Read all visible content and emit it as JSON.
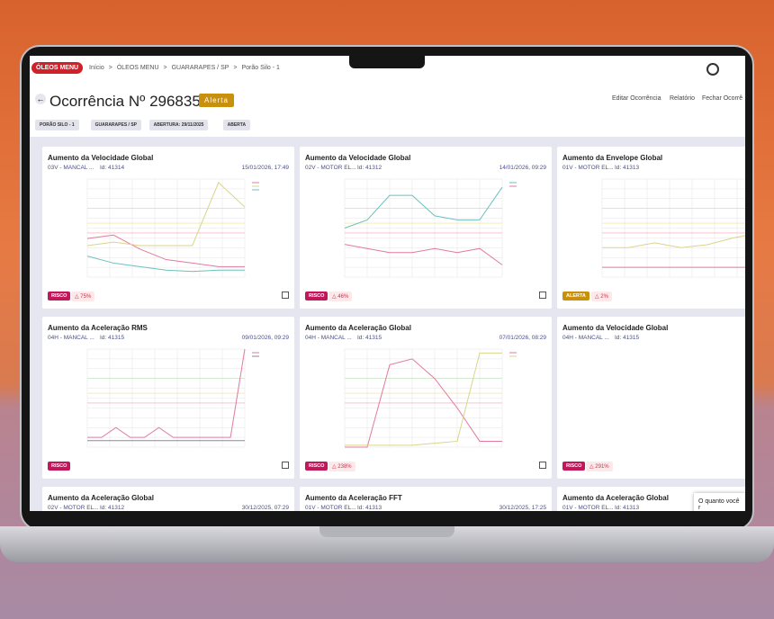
{
  "topbar": {
    "logo": "ÓLEOS MENU",
    "breadcrumb": [
      "Início",
      "ÓLEOS MENU",
      "GUARARAPES / SP",
      "Porão Silo - 1"
    ]
  },
  "header": {
    "title": "Ocorrência Nº 296835",
    "status": "Alerta",
    "actions": [
      "Editar Ocorrência",
      "Relatório",
      "Fechar Ocorrê"
    ],
    "tags": [
      "PORÃO SILO - 1",
      "GUARARAPES / SP",
      "ABERTURA: 29/11/2025",
      "ABERTA"
    ]
  },
  "cards": [
    {
      "title": "Aumento da Velocidade Global",
      "asset": "03V - MANCAL ...",
      "id": "Id: 41314",
      "date": "15/01/2026, 17:49",
      "level": "RISCO",
      "change": "75%",
      "chart": {
        "ylim": [
          0,
          14
        ],
        "series": [
          {
            "color": "#e27aa0",
            "values": [
              5.5,
              6,
              4,
              2.5,
              2,
              1.5,
              1.5
            ]
          },
          {
            "color": "#d8d68a",
            "values": [
              4.5,
              5,
              4.5,
              4.5,
              4.5,
              13.5,
              10
            ]
          },
          {
            "color": "#6cc0c0",
            "values": [
              3,
              2,
              1.5,
              1,
              0.8,
              1,
              1
            ]
          }
        ]
      }
    },
    {
      "title": "Aumento da Velocidade Global",
      "asset": "02V - MOTOR EL...",
      "id": "Id: 41312",
      "date": "14/01/2026, 09:29",
      "level": "RISCO",
      "change": "46%",
      "chart": {
        "ylim": [
          0,
          12
        ],
        "series": [
          {
            "color": "#6cc0c0",
            "values": [
              6,
              7,
              10,
              10,
              7.5,
              7,
              7,
              11
            ]
          },
          {
            "color": "#e27aa0",
            "values": [
              4,
              3.5,
              3,
              3,
              3.5,
              3,
              3.5,
              1.5
            ]
          }
        ]
      }
    },
    {
      "title": "Aumento da Envelope Global",
      "asset": "01V - MOTOR EL...",
      "id": "Id: 41313",
      "level": "ALERTA",
      "change": "2%",
      "chart": {
        "ylim": [
          0,
          1
        ],
        "series": [
          {
            "color": "#d8d68a",
            "values": [
              0.3,
              0.3,
              0.35,
              0.3,
              0.33,
              0.4,
              0.45
            ]
          },
          {
            "color": "#e27aa0",
            "values": [
              0.1,
              0.1,
              0.1,
              0.1,
              0.1,
              0.1,
              0.1
            ]
          }
        ]
      }
    },
    {
      "title": "Aumento da Aceleração RMS",
      "asset": "04H - MANCAL ...",
      "id": "Id: 41315",
      "date": "09/01/2026, 09:29",
      "level": "RISCO",
      "chart": {
        "ylim": [
          0,
          3
        ],
        "series": [
          {
            "color": "#e27aa0",
            "values": [
              0.3,
              0.3,
              0.6,
              0.3,
              0.3,
              0.6,
              0.3,
              0.3,
              0.3,
              0.3,
              0.3,
              3
            ]
          },
          {
            "color": "#8a8a9a",
            "values": [
              0.2,
              0.2,
              0.2,
              0.2,
              0.2,
              0.2,
              0.2,
              0.2,
              0.2,
              0.2,
              0.2,
              0.2
            ]
          }
        ]
      }
    },
    {
      "title": "Aumento da Aceleração Global",
      "asset": "04H - MANCAL ...",
      "id": "Id: 41315",
      "date": "07/01/2026, 08:29",
      "level": "RISCO",
      "change": "238%",
      "chart": {
        "ylim": [
          0,
          5
        ],
        "series": [
          {
            "color": "#e27aa0",
            "values": [
              0,
              0,
              4.2,
              4.5,
              3.5,
              2,
              0.3,
              0.3
            ]
          },
          {
            "color": "#d8d68a",
            "values": [
              0.1,
              0.1,
              0.1,
              0.1,
              0.2,
              0.3,
              4.8,
              4.8
            ]
          }
        ]
      }
    },
    {
      "title": "Aumento da Velocidade Global",
      "asset": "04H - MANCAL ...",
      "id": "Id: 41315",
      "level": "RISCO",
      "change": "291%"
    },
    {
      "title": "Aumento da Aceleração Global",
      "asset": "02V - MOTOR EL...",
      "id": "Id: 41312",
      "date": "30/12/2025, 07:29"
    },
    {
      "title": "Aumento da Aceleração FFT",
      "asset": "01V - MOTOR EL...",
      "id": "Id: 41313",
      "date": "30/12/2025, 17:25"
    },
    {
      "title": "Aumento da Aceleração Global",
      "asset": "01V - MOTOR EL...",
      "id": "Id: 41313"
    }
  ],
  "toast": "O quanto você r"
}
